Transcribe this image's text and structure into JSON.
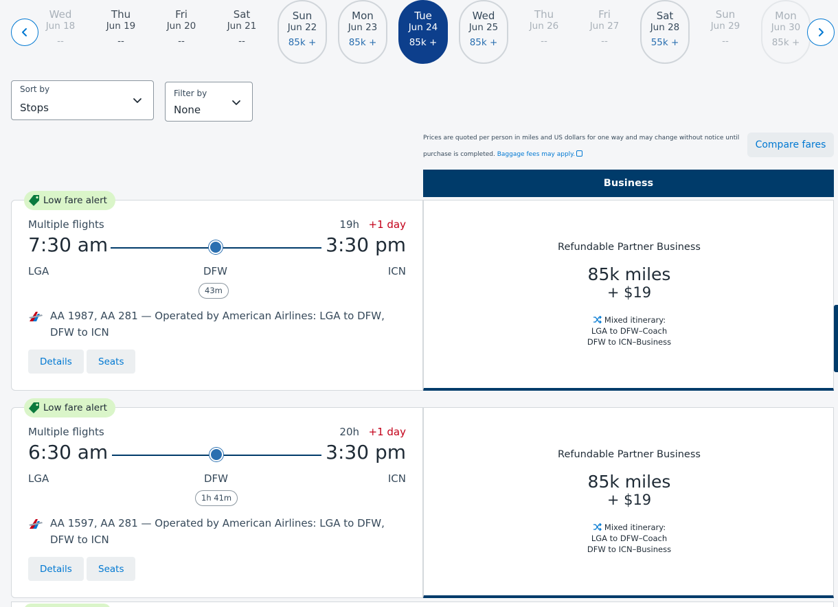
{
  "date_strip": {
    "days": [
      {
        "dow": "Wed",
        "date": "Jun 18",
        "price": "--"
      },
      {
        "dow": "Thu",
        "date": "Jun 19",
        "price": "--"
      },
      {
        "dow": "Fri",
        "date": "Jun 20",
        "price": "--"
      },
      {
        "dow": "Sat",
        "date": "Jun 21",
        "price": "--"
      },
      {
        "dow": "Sun",
        "date": "Jun 22",
        "price": "85k +"
      },
      {
        "dow": "Mon",
        "date": "Jun 23",
        "price": "85k +"
      },
      {
        "dow": "Tue",
        "date": "Jun 24",
        "price": "85k +"
      },
      {
        "dow": "Wed",
        "date": "Jun 25",
        "price": "85k +"
      },
      {
        "dow": "Thu",
        "date": "Jun 26",
        "price": "--"
      },
      {
        "dow": "Fri",
        "date": "Jun 27",
        "price": "--"
      },
      {
        "dow": "Sat",
        "date": "Jun 28",
        "price": "55k +"
      },
      {
        "dow": "Sun",
        "date": "Jun 29",
        "price": "--"
      },
      {
        "dow": "Mon",
        "date": "Jun 30",
        "price": "85k +"
      }
    ]
  },
  "sort": {
    "label": "Sort by",
    "value": "Stops"
  },
  "filter": {
    "label": "Filter by",
    "value": "None"
  },
  "notice": {
    "text": "Prices are quoted per person in miles and US dollars for one way and may change without notice until purchase is completed.",
    "link": "Baggage fees may apply."
  },
  "compare_label": "Compare fares",
  "cabin_header": "Business",
  "flights": [
    {
      "alert": "Low fare alert",
      "type": "Multiple flights",
      "duration": "19h",
      "day_offset": "+1 day",
      "depart_time": "7:30 am",
      "arrive_time": "3:30 pm",
      "origin": "LGA",
      "connection": "DFW",
      "destination": "ICN",
      "layover": "43m",
      "operated": "AA 1987, AA 281 — Operated by American Airlines: LGA to DFW, DFW to ICN",
      "details_label": "Details",
      "seats_label": "Seats",
      "fare": {
        "name": "Refundable Partner Business",
        "miles": "85k miles",
        "cash": "+ $19",
        "mixed_title": "Mixed itinerary:",
        "seg1": "LGA to DFW–Coach",
        "seg2": "DFW to ICN–Business"
      }
    },
    {
      "alert": "Low fare alert",
      "type": "Multiple flights",
      "duration": "20h",
      "day_offset": "+1 day",
      "depart_time": "6:30 am",
      "arrive_time": "3:30 pm",
      "origin": "LGA",
      "connection": "DFW",
      "destination": "ICN",
      "layover": "1h 41m",
      "operated": "AA 1597, AA 281 — Operated by American Airlines: LGA to DFW, DFW to ICN",
      "details_label": "Details",
      "seats_label": "Seats",
      "fare": {
        "name": "Refundable Partner Business",
        "miles": "85k miles",
        "cash": "+ $19",
        "mixed_title": "Mixed itinerary:",
        "seg1": "LGA to DFW–Coach",
        "seg2": "DFW to ICN–Business"
      }
    }
  ]
}
